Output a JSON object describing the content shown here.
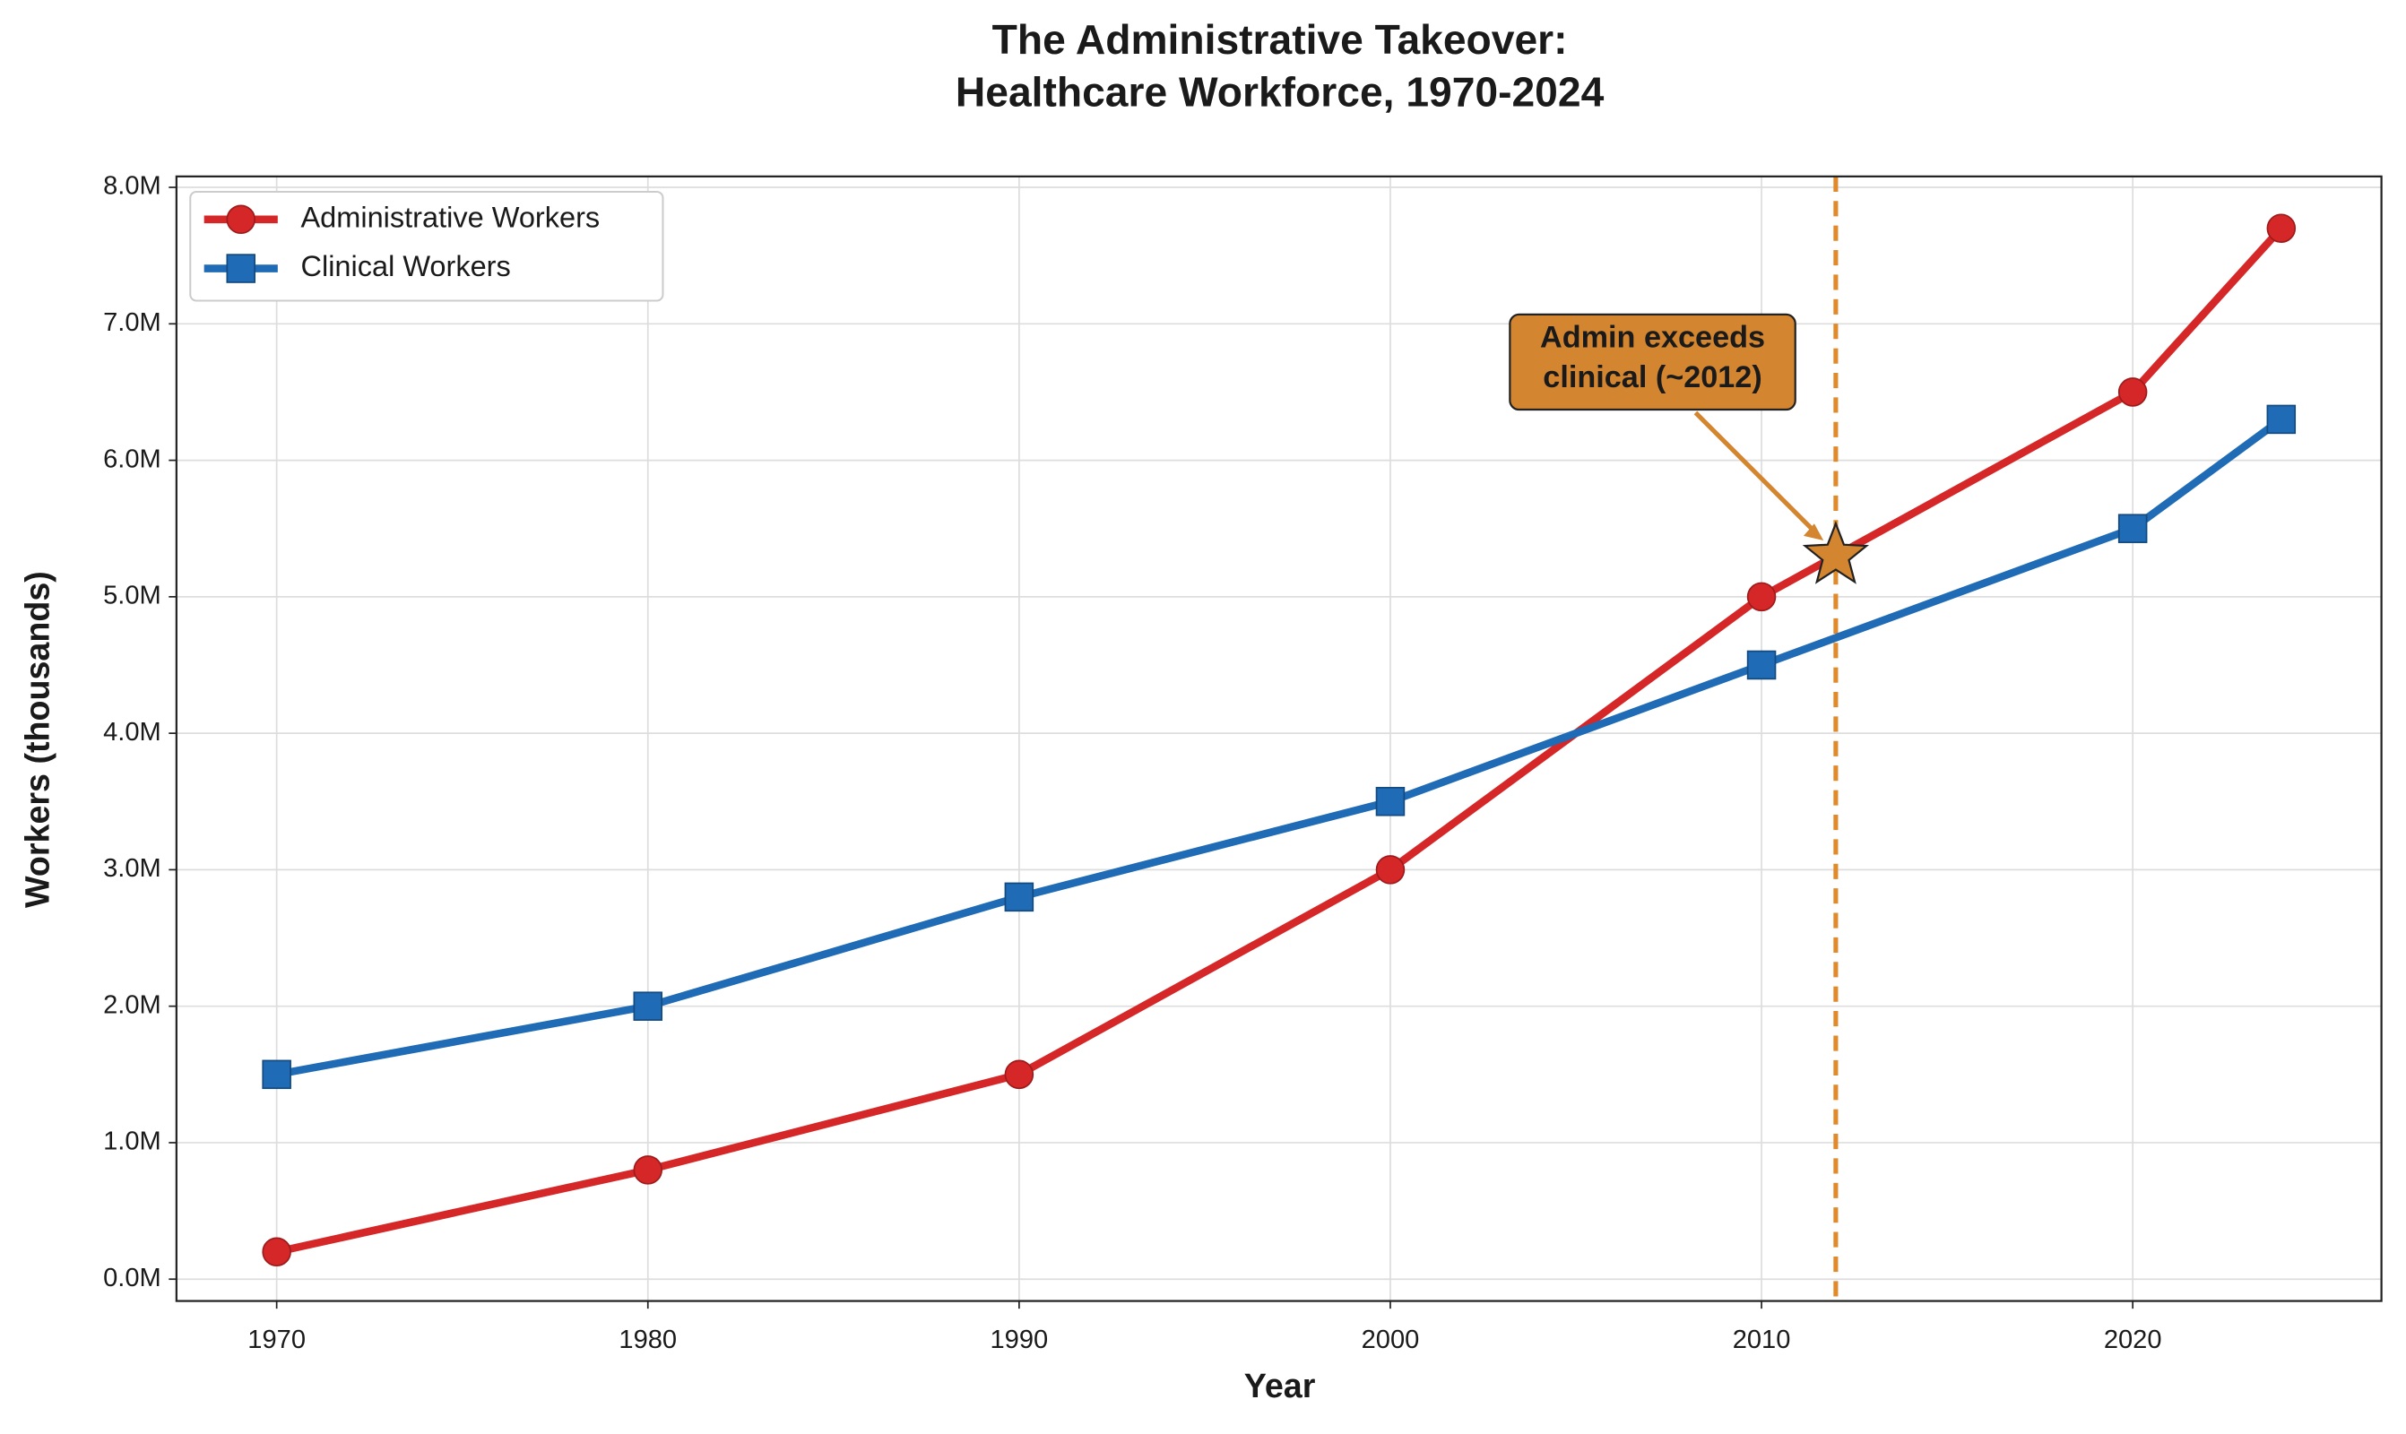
{
  "chart_data": {
    "type": "line",
    "title": [
      "The Administrative Takeover:",
      "Healthcare Workforce, 1970-2024"
    ],
    "x_label": "Year",
    "y_label": "Workers (thousands)",
    "x": [
      1970,
      1980,
      1990,
      2000,
      2010,
      2020,
      2024
    ],
    "series": [
      {
        "name": "Administrative Workers",
        "color": "#d62728",
        "marker": "circle",
        "values": [
          200,
          800,
          1500,
          3000,
          5000,
          6500,
          7700
        ]
      },
      {
        "name": "Clinical Workers",
        "color": "#1f6bb5",
        "marker": "square",
        "values": [
          1500,
          2000,
          2800,
          3500,
          4500,
          5500,
          6300
        ]
      }
    ],
    "xlim": [
      1967.3,
      2026.7
    ],
    "xticks": [
      1970,
      1980,
      1990,
      2000,
      2010,
      2020
    ],
    "ylim": [
      -160,
      8080
    ],
    "yticks": [
      {
        "value": 0,
        "label": "0.0M"
      },
      {
        "value": 1000,
        "label": "1.0M"
      },
      {
        "value": 2000,
        "label": "2.0M"
      },
      {
        "value": 3000,
        "label": "3.0M"
      },
      {
        "value": 4000,
        "label": "4.0M"
      },
      {
        "value": 5000,
        "label": "5.0M"
      },
      {
        "value": 6000,
        "label": "6.0M"
      },
      {
        "value": 7000,
        "label": "7.0M"
      },
      {
        "value": 8000,
        "label": "8.0M"
      }
    ],
    "grid": true,
    "legend": "upper left",
    "vline": {
      "x": 2012,
      "color": "#e08a2c"
    },
    "annotation": {
      "text": [
        "Admin exceeds",
        "clinical (~2012)"
      ],
      "x": 2012,
      "y": 5300,
      "color": "#d4852f"
    }
  }
}
